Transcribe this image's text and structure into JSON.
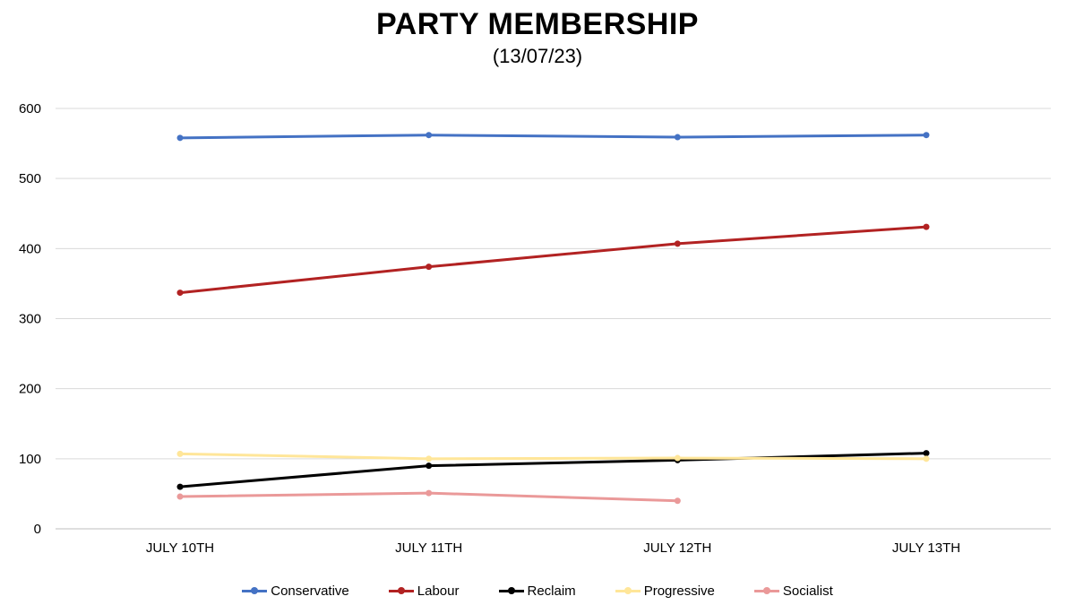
{
  "chart_data": {
    "type": "line",
    "title": "PARTY MEMBERSHIP",
    "subtitle": "(13/07/23)",
    "categories": [
      "JULY 10TH",
      "JULY 11TH",
      "JULY 12TH",
      "JULY 13TH"
    ],
    "ylim": [
      0,
      600
    ],
    "yticks": [
      0,
      100,
      200,
      300,
      400,
      500,
      600
    ],
    "grid": true,
    "legend_position": "bottom",
    "series": [
      {
        "name": "Conservative",
        "color": "#4472c4",
        "values": [
          558,
          562,
          559,
          562
        ]
      },
      {
        "name": "Labour",
        "color": "#b22222",
        "values": [
          337,
          374,
          407,
          431
        ]
      },
      {
        "name": "Reclaim",
        "color": "#000000",
        "values": [
          60,
          90,
          98,
          108
        ]
      },
      {
        "name": "Progressive",
        "color": "#ffe699",
        "values": [
          107,
          100,
          101,
          100
        ]
      },
      {
        "name": "Socialist",
        "color": "#ea9999",
        "values": [
          46,
          51,
          40,
          null
        ]
      }
    ]
  }
}
